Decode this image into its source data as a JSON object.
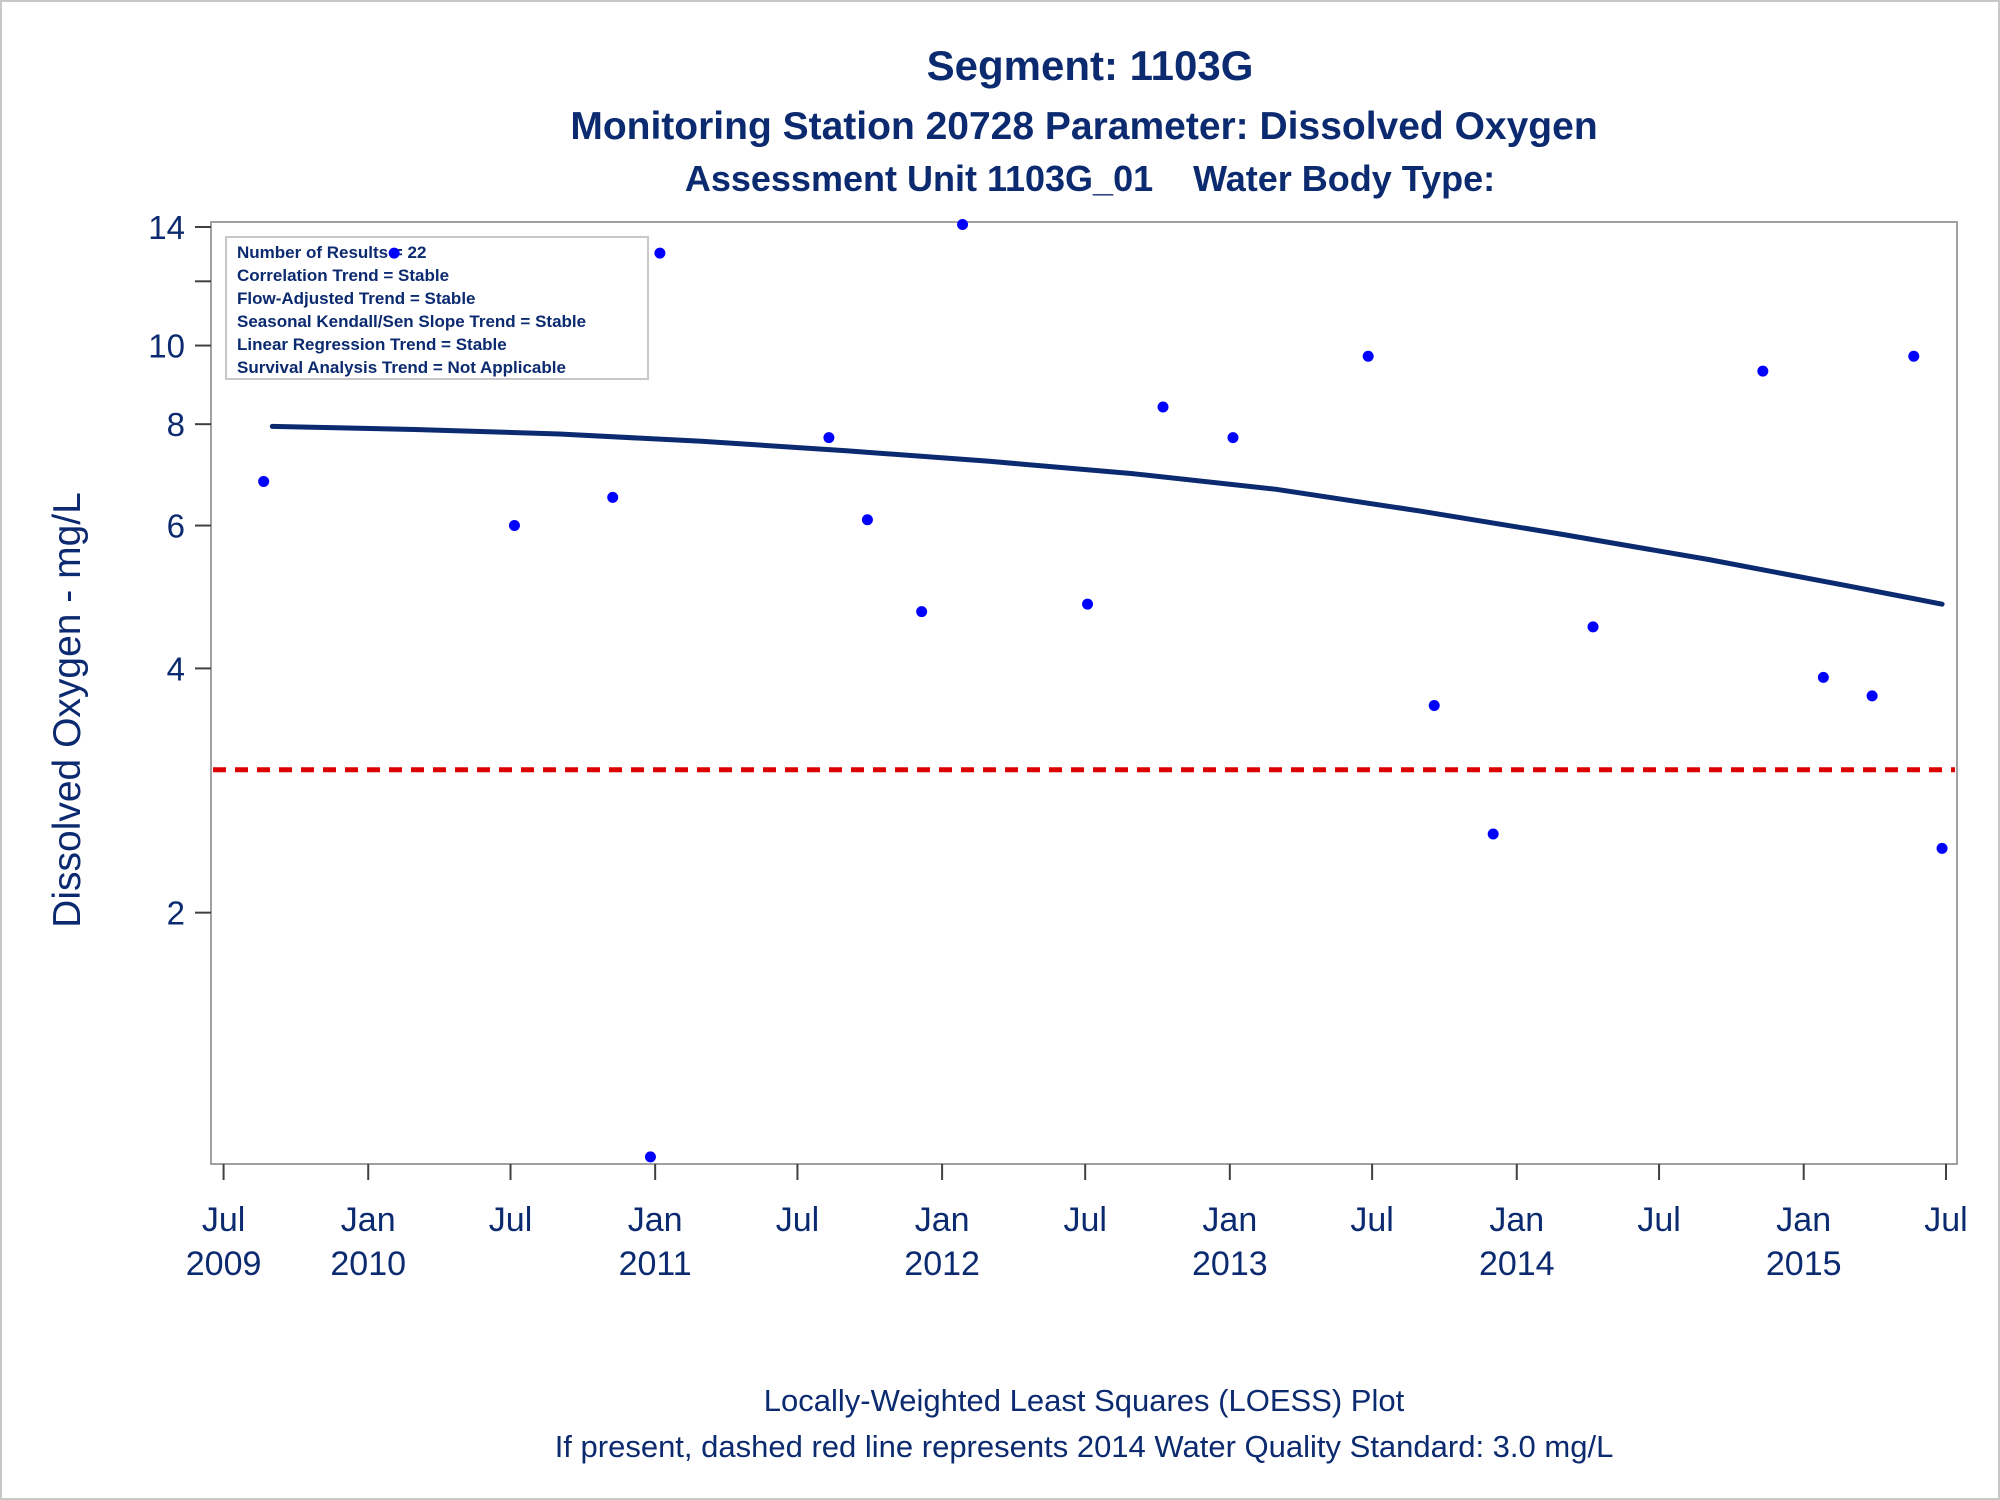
{
  "titles": {
    "line1": "Segment: 1103G",
    "line2": "Monitoring Station 20728 Parameter: Dissolved Oxygen",
    "line3": "Assessment Unit 1103G_01    Water Body Type:"
  },
  "stats_box": [
    "Number of Results = 22",
    "Correlation Trend = Stable",
    "Flow-Adjusted Trend = Stable",
    "Seasonal Kendall/Sen Slope Trend = Stable",
    "Linear Regression Trend = Stable",
    "Survival Analysis Trend = Not Applicable"
  ],
  "footnotes": {
    "line1": "Locally-Weighted Least Squares (LOESS) Plot",
    "line2": "If present, dashed red line represents 2014 Water Quality Standard: 3.0 mg/L"
  },
  "colors": {
    "text": "#0b2a6f",
    "points": "#0000ff",
    "loess": "#0b2a6f",
    "standard": "#dd0000",
    "frame": "#a0a0a0"
  },
  "chart_data": {
    "type": "scatter",
    "ylabel": "Dissolved Oxygen - mg/L",
    "y_scale": "log",
    "ylim": [
      0.98,
      14.2
    ],
    "y_ticks": [
      {
        "value": 2,
        "label": "2"
      },
      {
        "value": 4,
        "label": "4"
      },
      {
        "value": 6,
        "label": "6"
      },
      {
        "value": 8,
        "label": "8"
      },
      {
        "value": 10,
        "label": "10"
      },
      {
        "value": 14,
        "label": "14"
      }
    ],
    "y_minor_ticks": [
      12
    ],
    "xlim": [
      "2009-06-15",
      "2015-07-15"
    ],
    "x_ticks": [
      {
        "date": "2009-07-01",
        "month": "Jul",
        "year": "2009"
      },
      {
        "date": "2010-01-01",
        "month": "Jan",
        "year": "2010"
      },
      {
        "date": "2010-07-01",
        "month": "Jul",
        "year": ""
      },
      {
        "date": "2011-01-01",
        "month": "Jan",
        "year": "2011"
      },
      {
        "date": "2011-07-01",
        "month": "Jul",
        "year": ""
      },
      {
        "date": "2012-01-01",
        "month": "Jan",
        "year": "2012"
      },
      {
        "date": "2012-07-01",
        "month": "Jul",
        "year": ""
      },
      {
        "date": "2013-01-01",
        "month": "Jan",
        "year": "2013"
      },
      {
        "date": "2013-07-01",
        "month": "Jul",
        "year": ""
      },
      {
        "date": "2014-01-01",
        "month": "Jan",
        "year": "2014"
      },
      {
        "date": "2014-07-01",
        "month": "Jul",
        "year": ""
      },
      {
        "date": "2015-01-01",
        "month": "Jan",
        "year": "2015"
      },
      {
        "date": "2015-07-01",
        "month": "Jul",
        "year": ""
      }
    ],
    "points": [
      {
        "date": "2009-08-21",
        "y": 6.8
      },
      {
        "date": "2010-02-03",
        "y": 13.0
      },
      {
        "date": "2010-07-06",
        "y": 6.0
      },
      {
        "date": "2010-11-08",
        "y": 6.5
      },
      {
        "date": "2010-12-26",
        "y": 1.0
      },
      {
        "date": "2011-01-07",
        "y": 13.0
      },
      {
        "date": "2011-08-10",
        "y": 7.7
      },
      {
        "date": "2011-09-28",
        "y": 6.1
      },
      {
        "date": "2011-12-06",
        "y": 4.7
      },
      {
        "date": "2012-01-27",
        "y": 14.1
      },
      {
        "date": "2012-07-04",
        "y": 4.8
      },
      {
        "date": "2012-10-08",
        "y": 8.4
      },
      {
        "date": "2013-01-05",
        "y": 7.7
      },
      {
        "date": "2013-06-26",
        "y": 9.7
      },
      {
        "date": "2013-09-18",
        "y": 3.6
      },
      {
        "date": "2013-12-02",
        "y": 2.5
      },
      {
        "date": "2014-04-08",
        "y": 4.5
      },
      {
        "date": "2014-11-10",
        "y": 9.3
      },
      {
        "date": "2015-01-26",
        "y": 3.9
      },
      {
        "date": "2015-03-29",
        "y": 3.7
      },
      {
        "date": "2015-05-21",
        "y": 9.7
      },
      {
        "date": "2015-06-26",
        "y": 2.4
      }
    ],
    "loess": [
      {
        "date": "2009-09-01",
        "y": 7.95
      },
      {
        "date": "2010-03-01",
        "y": 7.88
      },
      {
        "date": "2010-09-01",
        "y": 7.78
      },
      {
        "date": "2011-03-01",
        "y": 7.62
      },
      {
        "date": "2011-09-01",
        "y": 7.42
      },
      {
        "date": "2012-03-01",
        "y": 7.2
      },
      {
        "date": "2012-09-01",
        "y": 6.95
      },
      {
        "date": "2013-03-01",
        "y": 6.65
      },
      {
        "date": "2013-09-01",
        "y": 6.25
      },
      {
        "date": "2014-03-01",
        "y": 5.85
      },
      {
        "date": "2014-09-01",
        "y": 5.45
      },
      {
        "date": "2015-03-01",
        "y": 5.05
      },
      {
        "date": "2015-06-26",
        "y": 4.8
      }
    ],
    "standard_line": 3.0
  }
}
